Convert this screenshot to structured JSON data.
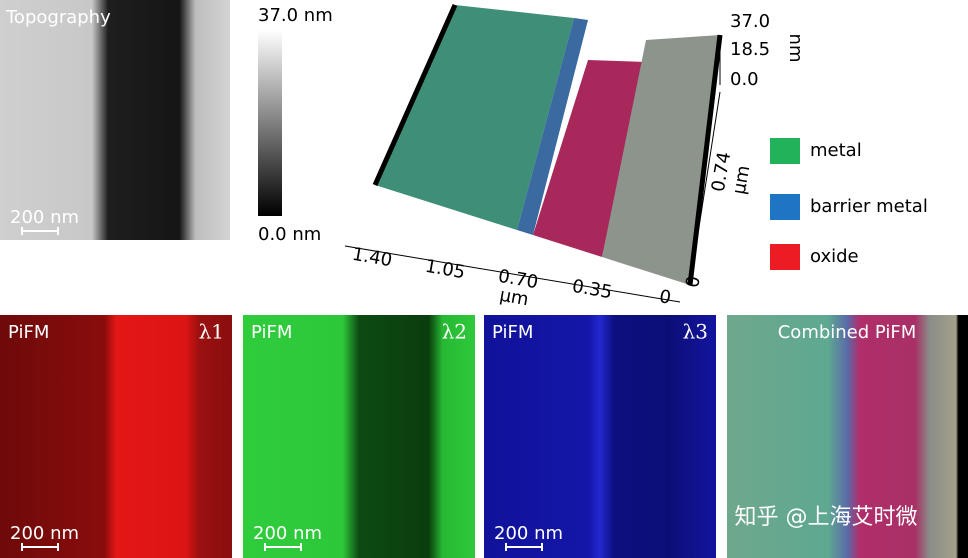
{
  "topography": {
    "label": "Topography",
    "scale_bar": "200 nm"
  },
  "colorbar": {
    "max": "37.0 nm",
    "min": "0.0 nm"
  },
  "surface_plot": {
    "z_ticks": [
      "37.0",
      "18.5",
      "0.0"
    ],
    "z_unit": "nm",
    "y_ticks": [
      "0.74",
      "0"
    ],
    "y_unit": "µm",
    "x_ticks": [
      "1.40",
      "1.05",
      "0.70",
      "0.35",
      "0"
    ],
    "x_unit": "µm"
  },
  "legend": [
    {
      "label": "metal",
      "color": "#22b25a"
    },
    {
      "label": "barrier metal",
      "color": "#1f74c4"
    },
    {
      "label": "oxide",
      "color": "#ec1c24"
    }
  ],
  "panels": [
    {
      "label": "PiFM",
      "wavelength": "λ1",
      "scale_bar": "200 nm"
    },
    {
      "label": "PiFM",
      "wavelength": "λ2",
      "scale_bar": "200 nm"
    },
    {
      "label": "PiFM",
      "wavelength": "λ3",
      "scale_bar": "200 nm"
    },
    {
      "label": "Combined PiFM"
    }
  ],
  "watermark": "知乎 @上海艾时微"
}
